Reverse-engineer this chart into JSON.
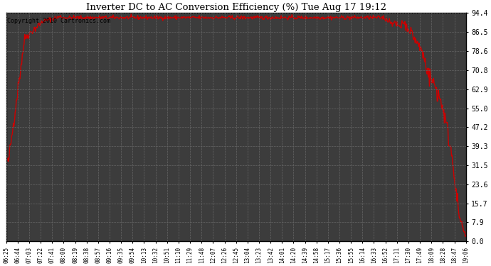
{
  "title": "Inverter DC to AC Conversion Efficiency (%) Tue Aug 17 19:12",
  "copyright_text": "Copyright 2010 Cartronics.com",
  "line_color": "#cc0000",
  "background_color": "#ffffff",
  "plot_bg_color": "#3c3c3c",
  "grid_color": "#666666",
  "grid_style": "--",
  "ytick_labels": [
    "0.0",
    "7.9",
    "15.7",
    "23.6",
    "31.5",
    "39.3",
    "47.2",
    "55.0",
    "62.9",
    "70.8",
    "78.6",
    "86.5",
    "94.4"
  ],
  "ytick_values": [
    0.0,
    7.9,
    15.7,
    23.6,
    31.5,
    39.3,
    47.2,
    55.0,
    62.9,
    70.8,
    78.6,
    86.5,
    94.4
  ],
  "ymin": 0.0,
  "ymax": 94.4,
  "xtick_labels": [
    "06:25",
    "06:44",
    "07:03",
    "07:22",
    "07:41",
    "08:00",
    "08:19",
    "08:38",
    "08:57",
    "09:16",
    "09:35",
    "09:54",
    "10:13",
    "10:32",
    "10:51",
    "11:10",
    "11:29",
    "11:48",
    "12:07",
    "12:26",
    "12:45",
    "13:04",
    "13:23",
    "13:42",
    "14:01",
    "14:20",
    "14:39",
    "14:58",
    "15:17",
    "15:36",
    "15:55",
    "16:14",
    "16:33",
    "16:52",
    "17:11",
    "17:30",
    "17:49",
    "18:09",
    "18:28",
    "18:47",
    "19:06"
  ],
  "line_width": 1.0,
  "figsize": [
    6.9,
    3.75
  ],
  "dpi": 100
}
